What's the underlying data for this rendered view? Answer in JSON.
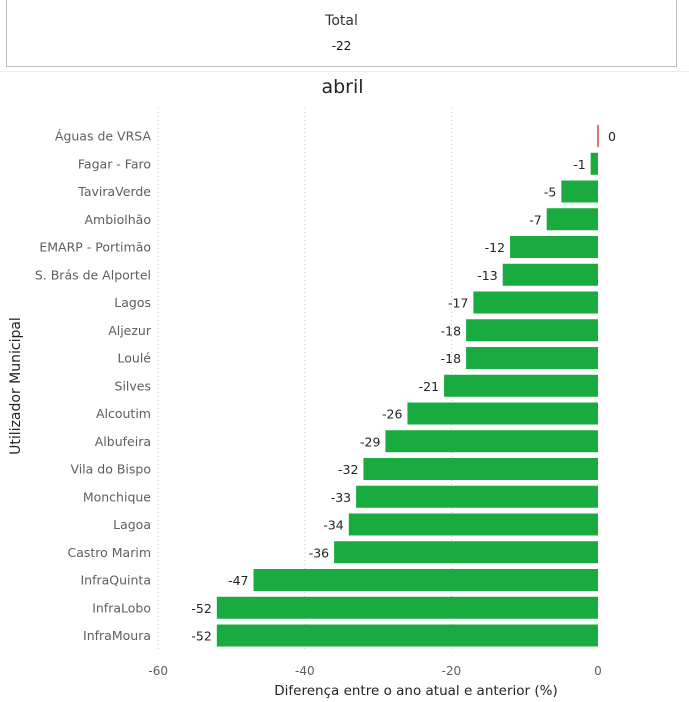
{
  "card": {
    "label": "Total",
    "value": "-22"
  },
  "chart_data": {
    "type": "bar",
    "orientation": "horizontal",
    "title": "abril",
    "xlabel": "Diferença entre o ano atual e anterior (%)",
    "ylabel": "Utilizador Municipal",
    "xlim": [
      -60,
      0
    ],
    "xticks": [
      -60,
      -40,
      -20,
      0
    ],
    "grid": "vertical dotted",
    "bar_color": "#1aab40",
    "zero_bar_color": "#e0707f",
    "categories": [
      "Águas de VRSA",
      "Fagar - Faro",
      "TaviraVerde",
      "Ambiolhão",
      "EMARP - Portimão",
      "S. Brás de Alportel",
      "Lagos",
      "Aljezur",
      "Loulé",
      "Silves",
      "Alcoutim",
      "Albufeira",
      "Vila do Bispo",
      "Monchique",
      "Lagoa",
      "Castro Marim",
      "InfraQuinta",
      "InfraLobo",
      "InfraMoura"
    ],
    "values": [
      0,
      -1,
      -5,
      -7,
      -12,
      -13,
      -17,
      -18,
      -18,
      -21,
      -26,
      -29,
      -32,
      -33,
      -34,
      -36,
      -47,
      -52,
      -52
    ],
    "data_labels": [
      "0",
      "-1",
      "-5",
      "-7",
      "-12",
      "-13",
      "-17",
      "-18",
      "-18",
      "-21",
      "-26",
      "-29",
      "-32",
      "-33",
      "-34",
      "-36",
      "-47",
      "-52",
      "-52"
    ]
  }
}
